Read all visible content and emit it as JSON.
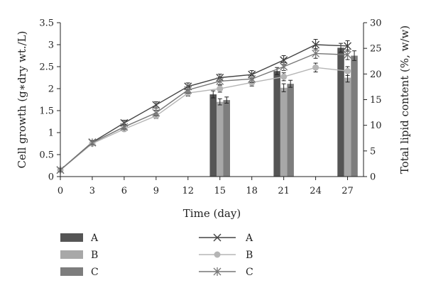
{
  "chart_data": {
    "type": "bar+line",
    "title": "",
    "xlabel": "Time (day)",
    "ylabel_left": "Cell growth (g∗dry wt./L)",
    "ylabel_right": "Total lipid content (%, w/w)",
    "x_ticks": [
      0,
      3,
      6,
      9,
      12,
      15,
      18,
      21,
      24,
      27
    ],
    "left_ticks": [
      "0",
      "0.5",
      "1",
      "1.5",
      "2",
      "2.5",
      "3",
      "3.5"
    ],
    "right_ticks": [
      "0",
      "5",
      "10",
      "15",
      "20",
      "25",
      "30"
    ],
    "xlim": [
      0,
      28.5
    ],
    "ylim_left": [
      0,
      3.5
    ],
    "ylim_right": [
      0,
      30
    ],
    "bar_series": [
      {
        "name": "A",
        "color": "#555555",
        "x": [
          15,
          21,
          27
        ],
        "values": [
          1.87,
          2.4,
          2.93
        ],
        "errors": [
          0.08,
          0.08,
          0.1
        ]
      },
      {
        "name": "B",
        "color": "#a8a8a8",
        "x": [
          15,
          21,
          27
        ],
        "values": [
          1.7,
          2.02,
          2.25
        ],
        "errors": [
          0.07,
          0.09,
          0.1
        ]
      },
      {
        "name": "C",
        "color": "#7d7d7d",
        "x": [
          15,
          21,
          27
        ],
        "values": [
          1.74,
          2.11,
          2.75
        ],
        "errors": [
          0.07,
          0.08,
          0.11
        ]
      }
    ],
    "line_series": [
      {
        "name": "A",
        "color": "#444444",
        "marker": "x",
        "x": [
          0,
          3,
          6,
          9,
          12,
          15,
          18,
          21,
          24,
          27
        ],
        "values": [
          0.15,
          0.78,
          1.22,
          1.63,
          2.05,
          2.25,
          2.32,
          2.65,
          3.0,
          2.97
        ],
        "errors": [
          0.03,
          0.04,
          0.06,
          0.07,
          0.08,
          0.08,
          0.09,
          0.1,
          0.12,
          0.12
        ]
      },
      {
        "name": "B",
        "color": "#b5b5b5",
        "marker": "circle",
        "x": [
          0,
          3,
          6,
          9,
          12,
          15,
          18,
          21,
          24,
          27
        ],
        "values": [
          0.15,
          0.75,
          1.08,
          1.38,
          1.9,
          2.0,
          2.14,
          2.27,
          2.48,
          2.4
        ],
        "errors": [
          0.03,
          0.04,
          0.05,
          0.06,
          0.07,
          0.08,
          0.08,
          0.09,
          0.1,
          0.1
        ]
      },
      {
        "name": "C",
        "color": "#777777",
        "marker": "asterisk",
        "x": [
          0,
          3,
          6,
          9,
          12,
          15,
          18,
          21,
          24,
          27
        ],
        "values": [
          0.15,
          0.77,
          1.13,
          1.45,
          1.97,
          2.17,
          2.22,
          2.5,
          2.8,
          2.77
        ],
        "errors": [
          0.03,
          0.04,
          0.05,
          0.06,
          0.07,
          0.08,
          0.08,
          0.09,
          0.11,
          0.11
        ]
      }
    ],
    "grid": false,
    "legend_position": "bottom-left"
  }
}
